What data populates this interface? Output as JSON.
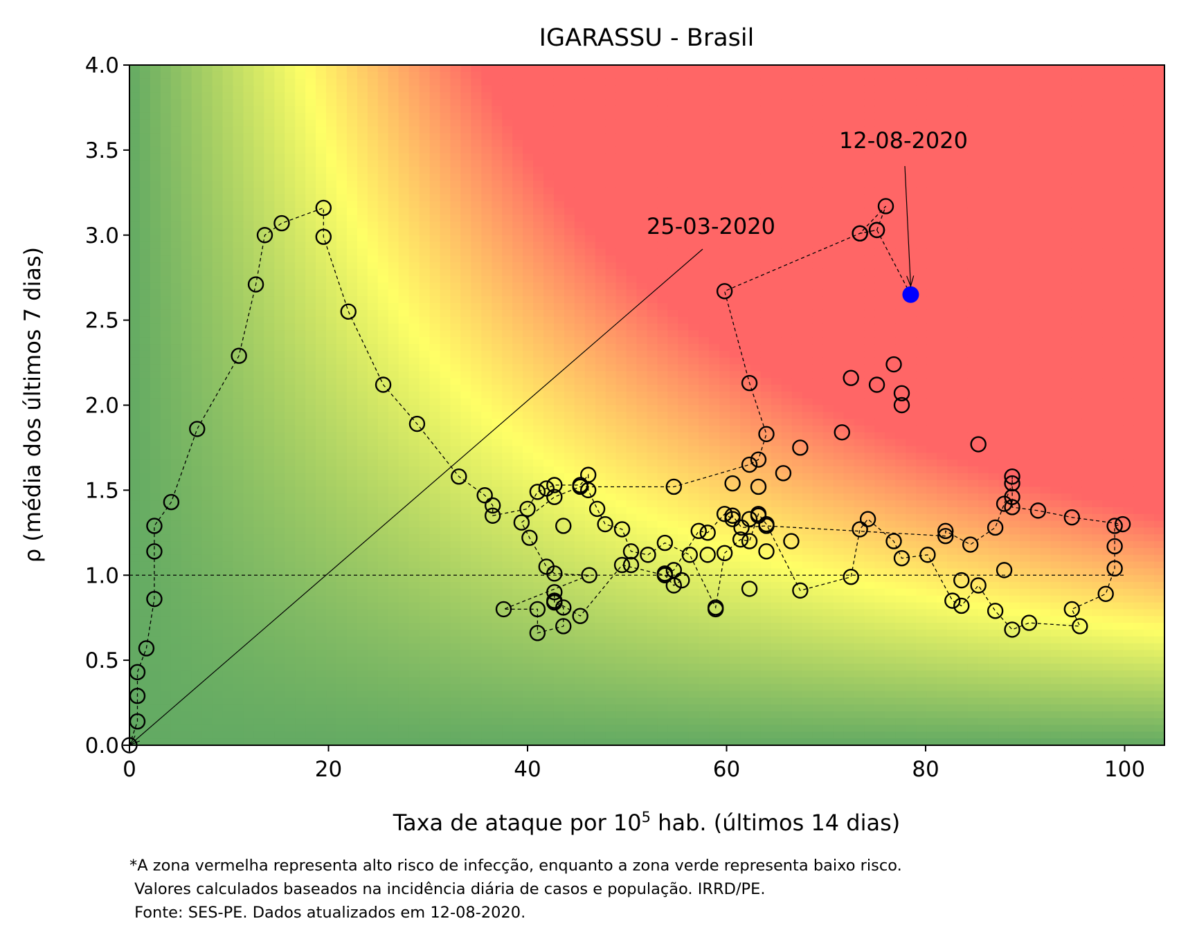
{
  "chart_data": {
    "type": "scatter",
    "title": "IGARASSU - Brasil",
    "xlabel_prefix": "Taxa de ataque por 10",
    "xlabel_sup": "5",
    "xlabel_suffix": " hab. (últimos 14 dias)",
    "ylabel": "ρ (média dos últimos 7 dias)",
    "xlim": [
      0,
      104
    ],
    "ylim": [
      0,
      4.0
    ],
    "xticks": [
      0,
      20,
      40,
      60,
      80,
      100
    ],
    "yticks": [
      0.0,
      0.5,
      1.0,
      1.5,
      2.0,
      2.5,
      3.0,
      3.5,
      4.0
    ],
    "ytick_labels": [
      "0.0",
      "0.5",
      "1.0",
      "1.5",
      "2.0",
      "2.5",
      "3.0",
      "3.5",
      "4.0"
    ],
    "reference_line_y": 1.0,
    "grid": false,
    "colors": {
      "low": "#63aa63",
      "mid": "#ffff66",
      "high": "#ff6666",
      "marker": "#000000",
      "last_point": "#0000ff"
    },
    "series": [
      {
        "points": [
          [
            0.0,
            0.0
          ],
          [
            0.8,
            0.14
          ],
          [
            0.8,
            0.29
          ],
          [
            0.8,
            0.43
          ],
          [
            1.7,
            0.57
          ],
          [
            2.5,
            0.86
          ],
          [
            2.5,
            1.14
          ],
          [
            2.5,
            1.29
          ],
          [
            4.2,
            1.43
          ],
          [
            6.8,
            1.86
          ],
          [
            11.0,
            2.29
          ],
          [
            12.7,
            2.71
          ],
          [
            13.6,
            3.0
          ],
          [
            15.3,
            3.07
          ],
          [
            19.5,
            3.16
          ],
          [
            19.5,
            2.99
          ],
          [
            22.0,
            2.55
          ],
          [
            25.5,
            2.12
          ],
          [
            28.9,
            1.89
          ],
          [
            33.1,
            1.58
          ],
          [
            35.7,
            1.47
          ],
          [
            36.5,
            1.41
          ],
          [
            36.5,
            1.35
          ],
          [
            40.0,
            1.39
          ],
          [
            41.0,
            1.49
          ],
          [
            41.9,
            1.51
          ],
          [
            42.7,
            1.53
          ],
          [
            45.3,
            1.53
          ],
          [
            46.1,
            1.59
          ],
          [
            46.1,
            1.5
          ],
          [
            47.0,
            1.39
          ],
          [
            47.8,
            1.3
          ],
          [
            49.5,
            1.27
          ],
          [
            50.4,
            1.14
          ],
          [
            52.1,
            1.12
          ],
          [
            53.8,
            1.19
          ],
          [
            56.3,
            1.12
          ],
          [
            58.9,
            0.81
          ],
          [
            59.8,
            1.13
          ],
          [
            61.4,
            1.21
          ],
          [
            62.3,
            1.2
          ],
          [
            63.2,
            1.36
          ],
          [
            64.0,
            1.3
          ],
          [
            67.4,
            0.91
          ],
          [
            72.5,
            0.99
          ],
          [
            73.4,
            1.27
          ],
          [
            74.2,
            1.33
          ],
          [
            76.8,
            1.2
          ],
          [
            77.6,
            1.1
          ],
          [
            80.2,
            1.12
          ],
          [
            82.7,
            0.85
          ],
          [
            83.6,
            0.82
          ],
          [
            85.3,
            0.94
          ],
          [
            87.0,
            0.79
          ],
          [
            88.7,
            0.68
          ],
          [
            90.4,
            0.72
          ],
          [
            95.5,
            0.7
          ],
          [
            94.7,
            0.8
          ],
          [
            98.1,
            0.89
          ],
          [
            99.0,
            1.04
          ],
          [
            99.0,
            1.17
          ],
          [
            99.0,
            1.29
          ],
          [
            99.8,
            1.3
          ],
          [
            94.7,
            1.34
          ],
          [
            91.3,
            1.38
          ],
          [
            88.7,
            1.4
          ],
          [
            88.7,
            1.46
          ],
          [
            88.7,
            1.58
          ],
          [
            88.7,
            1.54
          ],
          [
            87.9,
            1.42
          ],
          [
            87.0,
            1.28
          ],
          [
            84.5,
            1.18
          ],
          [
            82.0,
            1.26
          ],
          [
            82.0,
            1.23
          ],
          [
            64.0,
            1.29
          ],
          [
            61.5,
            1.28
          ],
          [
            60.6,
            1.35
          ],
          [
            60.6,
            1.33
          ],
          [
            59.8,
            1.36
          ],
          [
            58.1,
            1.25
          ],
          [
            57.2,
            1.26
          ],
          [
            54.7,
            1.03
          ],
          [
            53.8,
            1.01
          ],
          [
            53.8,
            1.0
          ],
          [
            55.5,
            0.97
          ],
          [
            54.7,
            0.94
          ],
          [
            53.8,
            1.0
          ],
          [
            49.5,
            1.06
          ],
          [
            45.3,
            0.76
          ],
          [
            42.7,
            0.85
          ],
          [
            42.7,
            0.84
          ],
          [
            42.7,
            0.9
          ],
          [
            42.7,
            0.84
          ],
          [
            43.6,
            0.81
          ],
          [
            43.6,
            0.7
          ],
          [
            41.0,
            0.66
          ],
          [
            41.0,
            0.8
          ],
          [
            37.6,
            0.8
          ],
          [
            46.2,
            1.0
          ],
          [
            42.7,
            1.01
          ],
          [
            41.9,
            1.05
          ],
          [
            40.2,
            1.22
          ],
          [
            39.4,
            1.31
          ],
          [
            42.7,
            1.46
          ],
          [
            45.3,
            1.52
          ],
          [
            54.7,
            1.52
          ],
          [
            62.3,
            1.65
          ],
          [
            63.2,
            1.68
          ],
          [
            64.0,
            1.83
          ],
          [
            62.3,
            2.13
          ],
          [
            59.8,
            2.67
          ],
          [
            73.4,
            3.01
          ],
          [
            75.1,
            3.03
          ],
          [
            76.0,
            3.17
          ],
          [
            73.4,
            3.01
          ],
          [
            75.1,
            3.03
          ],
          [
            78.5,
            2.65
          ]
        ],
        "decor_points": [
          [
            67.4,
            1.75
          ],
          [
            65.7,
            1.6
          ],
          [
            63.2,
            1.52
          ],
          [
            60.6,
            1.54
          ],
          [
            58.9,
            0.8
          ],
          [
            62.3,
            0.92
          ],
          [
            64.0,
            1.14
          ],
          [
            66.5,
            1.2
          ],
          [
            43.6,
            1.29
          ],
          [
            50.4,
            1.06
          ],
          [
            71.6,
            1.84
          ],
          [
            72.5,
            2.16
          ],
          [
            75.1,
            2.12
          ],
          [
            76.8,
            2.24
          ],
          [
            77.6,
            2.07
          ],
          [
            77.6,
            2.0
          ],
          [
            85.3,
            1.77
          ],
          [
            87.9,
            1.03
          ],
          [
            83.6,
            0.97
          ],
          [
            58.1,
            1.12
          ],
          [
            62.3,
            1.33
          ],
          [
            63.2,
            1.35
          ]
        ]
      }
    ],
    "annotations": [
      {
        "text": "25-03-2020",
        "target": [
          0.0,
          0.0
        ]
      },
      {
        "text": "12-08-2020",
        "target": [
          78.5,
          2.65
        ]
      }
    ],
    "footnote": [
      "*A zona vermelha representa alto risco de infecção, enquanto a zona verde representa baixo risco.",
      " Valores calculados baseados na incidência diária de casos e população. IRRD/PE.",
      " Fonte: SES-PE. Dados atualizados em 12-08-2020."
    ]
  }
}
